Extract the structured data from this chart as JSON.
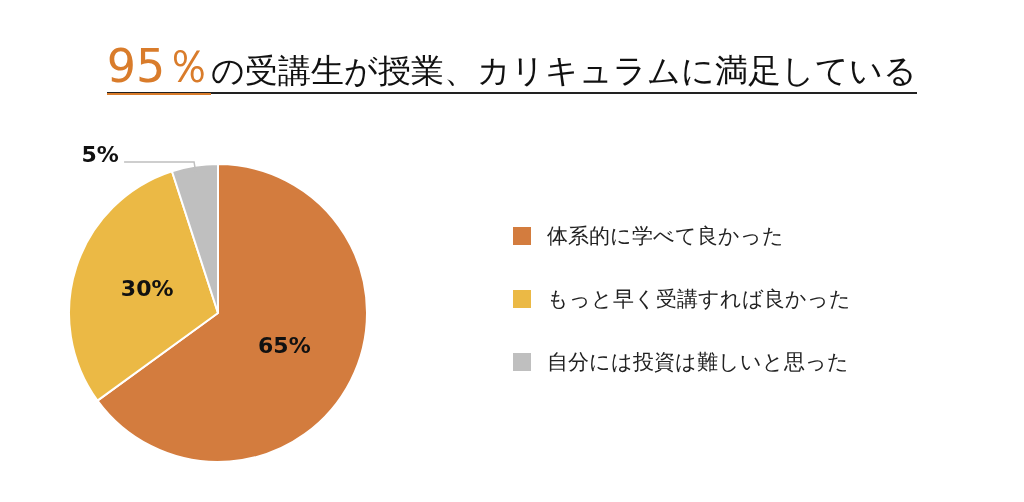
{
  "chart_data": {
    "type": "pie",
    "title": "95％の受講生が授業、カリキュラムに満足している",
    "categories": [
      "体系的に学べて良かった",
      "もっと早く受講すれば良かった",
      "自分には投資は難しいと思った"
    ],
    "values": [
      65,
      30,
      5
    ],
    "colors": [
      "#d37c3e",
      "#ebb945",
      "#bfbfbf"
    ],
    "value_labels": [
      "65%",
      "30%",
      "5%"
    ],
    "legend": "right"
  }
}
